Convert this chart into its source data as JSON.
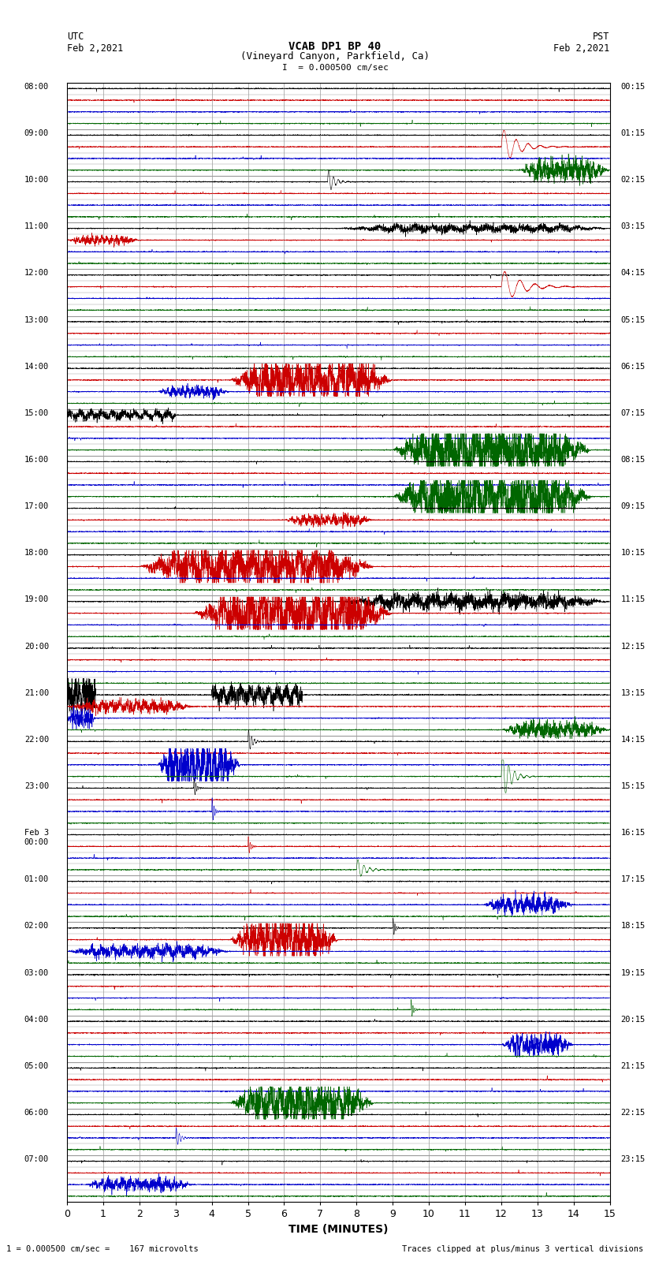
{
  "title_line1": "VCAB DP1 BP 40",
  "title_line2": "(Vineyard Canyon, Parkfield, Ca)",
  "scale_label": "I  = 0.000500 cm/sec",
  "left_label": "UTC",
  "left_date": "Feb 2,2021",
  "right_label": "PST",
  "right_date": "Feb 2,2021",
  "xlabel": "TIME (MINUTES)",
  "bottom_left": "1 = 0.000500 cm/sec =    167 microvolts",
  "bottom_right": "Traces clipped at plus/minus 3 vertical divisions",
  "utc_labels": [
    "08:00",
    "09:00",
    "10:00",
    "11:00",
    "12:00",
    "13:00",
    "14:00",
    "15:00",
    "16:00",
    "17:00",
    "18:00",
    "19:00",
    "20:00",
    "21:00",
    "22:00",
    "23:00",
    "Feb 3\n00:00",
    "01:00",
    "02:00",
    "03:00",
    "04:00",
    "05:00",
    "06:00",
    "07:00"
  ],
  "pst_labels": [
    "00:15",
    "01:15",
    "02:15",
    "03:15",
    "04:15",
    "05:15",
    "06:15",
    "07:15",
    "08:15",
    "09:15",
    "10:15",
    "11:15",
    "12:15",
    "13:15",
    "14:15",
    "15:15",
    "16:15",
    "17:15",
    "18:15",
    "19:15",
    "20:15",
    "21:15",
    "22:15",
    "23:15"
  ],
  "trace_colors": [
    "#000000",
    "#cc0000",
    "#0000cc",
    "#006600"
  ],
  "num_rows": 24,
  "subrows": 4,
  "xmin": 0,
  "xmax": 15,
  "background_color": "#ffffff",
  "grid_color": "#999999",
  "fig_width": 8.5,
  "fig_height": 16.13
}
